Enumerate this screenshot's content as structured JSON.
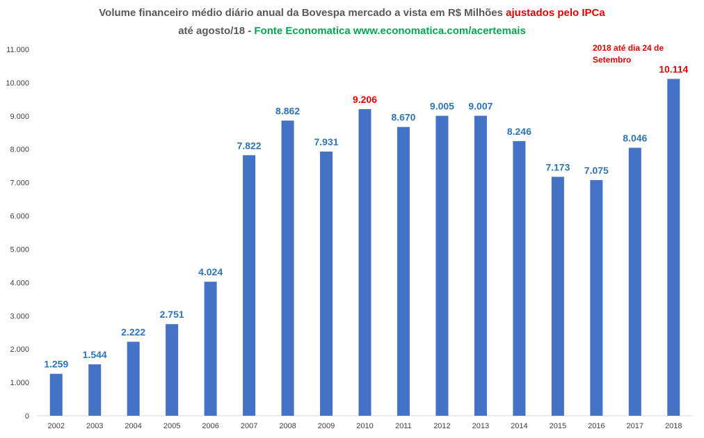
{
  "chart_data": {
    "type": "bar",
    "title_parts": {
      "gray": "Volume financeiro médio diário anual da Bovespa mercado a vista  em R$ Milhões ",
      "red": "ajustados pelo IPCa",
      "line2_gray": "até agosto/18 - ",
      "line2_green": "Fonte Economatica www.economatica.com/acertemais"
    },
    "annotation": "2018 até dia 24 de Setembro",
    "categories": [
      "2002",
      "2003",
      "2004",
      "2005",
      "2006",
      "2007",
      "2008",
      "2009",
      "2010",
      "2011",
      "2012",
      "2013",
      "2014",
      "2015",
      "2016",
      "2017",
      "2018"
    ],
    "values": [
      1259,
      1544,
      2222,
      2751,
      4024,
      7822,
      8862,
      7931,
      9206,
      8670,
      9005,
      9007,
      8246,
      7173,
      7075,
      8046,
      10114
    ],
    "data_labels": [
      "1.259",
      "1.544",
      "2.222",
      "2.751",
      "4.024",
      "7.822",
      "8.862",
      "7.931",
      "9.206",
      "8.670",
      "9.005",
      "9.007",
      "8.246",
      "7.173",
      "7.075",
      "8.046",
      "10.114"
    ],
    "highlight_labels": [
      "2010",
      "2018"
    ],
    "y_ticks": [
      0,
      1000,
      2000,
      3000,
      4000,
      5000,
      6000,
      7000,
      8000,
      9000,
      10000,
      11000
    ],
    "y_tick_labels": [
      "0",
      "1.000",
      "2.000",
      "3.000",
      "4.000",
      "5.000",
      "6.000",
      "7.000",
      "8.000",
      "9.000",
      "10.000",
      "11.000"
    ],
    "ylim": [
      0,
      11000
    ],
    "grid": false,
    "colors": {
      "bar": "#4472c4",
      "label": "#2e75b6",
      "highlight": "#e00000",
      "axis": "#d9d9d9",
      "tick_text": "#404040"
    }
  }
}
